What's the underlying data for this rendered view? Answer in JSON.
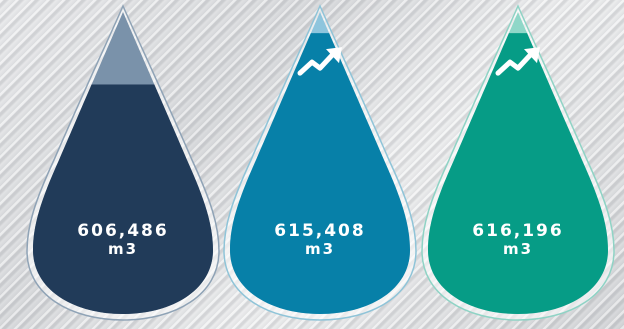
{
  "drops": [
    {
      "value": "606,486",
      "unit": "m3",
      "fill_level": 0.76,
      "trend_icon": null,
      "colors": {
        "top": "#7a92aa",
        "fill": "#213b59",
        "outline": "#8fa3b6"
      }
    },
    {
      "value": "615,408",
      "unit": "m3",
      "fill_level": 0.93,
      "trend_icon": "trend-up-arrow",
      "colors": {
        "top": "#8ec5dd",
        "fill": "#0780a8",
        "outline": "#8fc4d8"
      }
    },
    {
      "value": "616,196",
      "unit": "m3",
      "fill_level": 0.93,
      "trend_icon": "trend-up-arrow",
      "colors": {
        "top": "#8fd7c8",
        "fill": "#069c86",
        "outline": "#8fd3c5"
      }
    }
  ]
}
